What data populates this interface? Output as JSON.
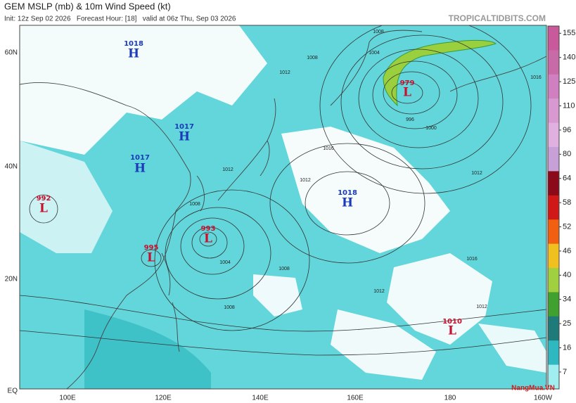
{
  "header": {
    "title": "GEM MSLP (mb) & 10m Wind Speed (kt)",
    "subtitle": "Init: 12z Sep 02 2026   Forecast Hour: [18]   valid at 06z Thu, Sep 03 2026",
    "brand": "TROPICALTIDBITS.COM"
  },
  "latitude_labels": [
    "60N",
    "40N",
    "20N",
    "EQ"
  ],
  "longitude_labels": [
    "100E",
    "120E",
    "140E",
    "160E",
    "180",
    "160W"
  ],
  "pressure_centers": [
    {
      "value": "1018",
      "symbol": "H"
    },
    {
      "value": "1017",
      "symbol": "H"
    },
    {
      "value": "1017",
      "symbol": "H"
    },
    {
      "value": "992",
      "symbol": "L"
    },
    {
      "value": "993",
      "symbol": "L"
    },
    {
      "value": "995",
      "symbol": "L"
    },
    {
      "value": "979",
      "symbol": "L"
    },
    {
      "value": "1018",
      "symbol": "H"
    },
    {
      "value": "1010",
      "symbol": "L"
    }
  ],
  "isobar_labels": [
    "1012",
    "1008",
    "1008",
    "1004",
    "1016",
    "1012",
    "1012",
    "1008",
    "1004",
    "1008",
    "1008",
    "1012",
    "1016",
    "1012",
    "1016",
    "1012",
    "1000",
    "996"
  ],
  "colorbar": {
    "ticks": [
      155,
      140,
      125,
      110,
      96,
      80,
      64,
      58,
      52,
      46,
      40,
      34,
      25,
      16,
      7
    ],
    "colors": [
      "#c85a9c",
      "#c86aa8",
      "#d080c0",
      "#d898d0",
      "#e0b0e0",
      "#c8a0d8",
      "#8a0a1a",
      "#d01818",
      "#f06010",
      "#f0c020",
      "#a0d040",
      "#40a030",
      "#1f7a7a",
      "#30b8c0",
      "#a0eef0"
    ]
  },
  "watermark": "NangMua.VN"
}
